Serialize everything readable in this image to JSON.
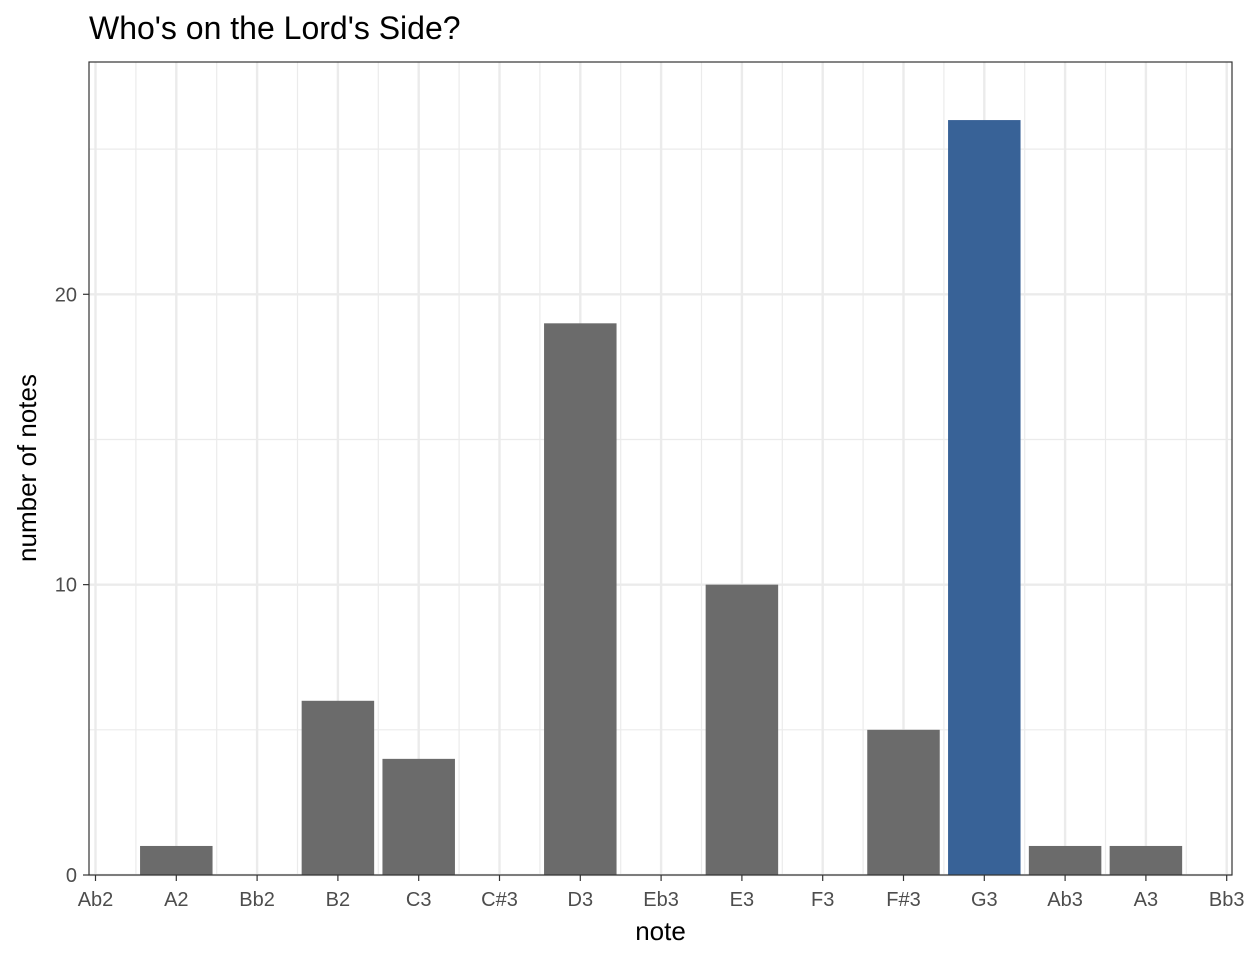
{
  "chart_data": {
    "type": "bar",
    "title": "Who's on the Lord's Side?",
    "xlabel": "note",
    "ylabel": "number of notes",
    "categories": [
      "Ab2",
      "A2",
      "Bb2",
      "B2",
      "C3",
      "C#3",
      "D3",
      "Eb3",
      "E3",
      "F3",
      "F#3",
      "G3",
      "Ab3",
      "A3",
      "Bb3"
    ],
    "values": [
      0,
      1,
      0,
      6,
      4,
      0,
      19,
      0,
      10,
      0,
      5,
      26,
      1,
      1,
      0
    ],
    "highlight_category": "G3",
    "ylim": [
      0,
      28
    ],
    "yticks": [
      0,
      10,
      20
    ],
    "grid": true,
    "legend": "none",
    "colors": {
      "bar": "#6b6b6b",
      "highlight": "#386297",
      "grid": "#ebebeb",
      "panel_border": "#333333",
      "tick_text": "#4d4d4d"
    }
  }
}
